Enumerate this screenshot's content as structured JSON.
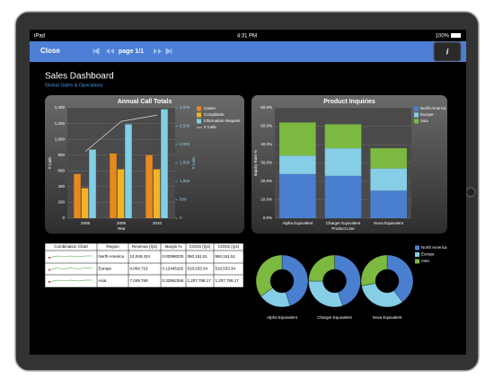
{
  "status_bar": {
    "device": "iPad",
    "time": "4:31 PM",
    "battery": "100%"
  },
  "toolbar": {
    "close": "Close",
    "page": "page 1/1",
    "info": "i"
  },
  "dashboard": {
    "title": "Sales Dashboard",
    "subtitle": "Global Sales & Operations"
  },
  "chart_data": [
    {
      "type": "bar",
      "title": "Annual Call Totals",
      "categories": [
        "2008",
        "2009",
        "2010"
      ],
      "x_label": "Year",
      "y_label": "# Calls",
      "y2_label": "# Calls",
      "series": [
        {
          "name": "Cases",
          "color": "#e8891e",
          "values": [
            560,
            820,
            800
          ]
        },
        {
          "name": "Complaints",
          "color": "#f2b325",
          "values": [
            380,
            620,
            620
          ]
        },
        {
          "name": "Information Request",
          "color": "#7fd0e6",
          "values": [
            870,
            1190,
            1380
          ]
        },
        {
          "name": "# Calls",
          "color": "#c8c8c8",
          "type": "line",
          "axis": "y2",
          "values": [
            1810,
            2630,
            2800
          ]
        }
      ],
      "ylim": [
        0,
        1400
      ],
      "yticks": [
        0,
        200,
        400,
        600,
        800,
        {
          "value": 1000,
          "label": "1,000"
        },
        {
          "value": 1200,
          "label": "1,200"
        },
        {
          "value": 1400,
          "label": "1,400"
        }
      ],
      "y2lim": [
        0,
        3000
      ],
      "y2ticks": [
        0,
        500,
        {
          "value": 1000,
          "label": "1,000"
        },
        {
          "value": 1500,
          "label": "1,500"
        },
        {
          "value": 2000,
          "label": "2,000"
        },
        {
          "value": 2500,
          "label": "2,500"
        },
        {
          "value": 3000,
          "label": "3,000"
        }
      ],
      "grid": true
    },
    {
      "type": "stacked_bar",
      "title": "Product Inquiries",
      "categories": [
        "Alpha Equivalent",
        "Charger Equivalent",
        "Nova Equivalent"
      ],
      "x_label": "Product Line",
      "y_label": "Inquiry Rate %",
      "series": [
        {
          "name": "North America",
          "color": "#4a7fd0",
          "values": [
            24,
            23,
            15
          ]
        },
        {
          "name": "Europe",
          "color": "#86cde6",
          "values": [
            10,
            15,
            12
          ]
        },
        {
          "name": "Asia",
          "color": "#7cb940",
          "values": [
            18,
            13,
            11
          ]
        }
      ],
      "ylim": [
        0,
        60
      ],
      "yticks": [
        {
          "value": 0,
          "label": "0.0%"
        },
        {
          "value": 10,
          "label": "10.0%"
        },
        {
          "value": 20,
          "label": "20.0%"
        },
        {
          "value": 30,
          "label": "30.0%"
        },
        {
          "value": 40,
          "label": "40.0%"
        },
        {
          "value": 50,
          "label": "50.0%"
        },
        {
          "value": 60,
          "label": "60.0%"
        }
      ],
      "grid": true
    },
    {
      "type": "donut",
      "categories": [
        "Alpha Equivalent",
        "Charger Equivalent",
        "Nova Equivalent"
      ],
      "series": [
        {
          "name": "North America",
          "color": "#4a7fd0",
          "values": [
            45,
            45,
            40
          ]
        },
        {
          "name": "Europe",
          "color": "#86cde6",
          "values": [
            20,
            30,
            32
          ]
        },
        {
          "name": "Asia",
          "color": "#7cb940",
          "values": [
            35,
            25,
            28
          ]
        }
      ]
    }
  ],
  "table": {
    "header": [
      "Combination Chart",
      "Region",
      "Revenue (Q4)",
      "Margin %",
      "COGS (Q4)",
      "COGS (Q4)"
    ],
    "rows": [
      [
        "North America",
        "12,048,424",
        "0.02998225",
        "550,151.51",
        "550,151.51"
      ],
      [
        "Europe",
        "4,054,719",
        "0.12446182",
        "516,533.34",
        "516,533.34"
      ],
      [
        "Asia",
        "7,049,769",
        "0.32952346",
        "1,207,758.17",
        "1,207,758.17"
      ]
    ]
  }
}
